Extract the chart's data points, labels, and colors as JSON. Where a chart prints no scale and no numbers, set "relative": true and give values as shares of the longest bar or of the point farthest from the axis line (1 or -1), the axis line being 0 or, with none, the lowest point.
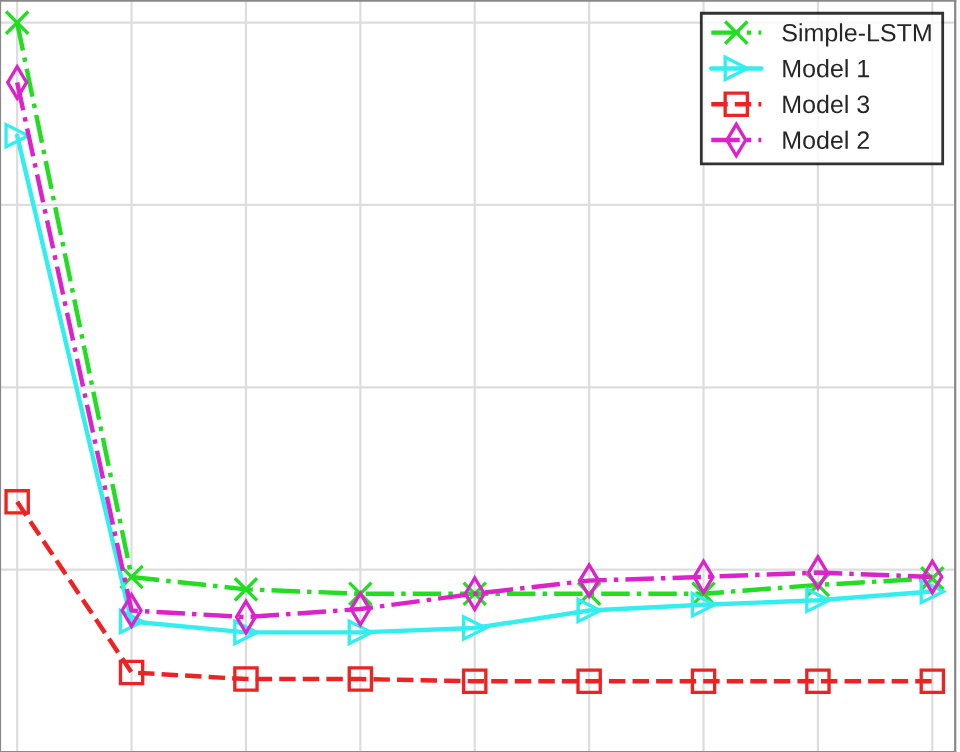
{
  "chart_data": {
    "type": "line",
    "relative": true,
    "categories": [
      null,
      null,
      null,
      null,
      null,
      null,
      null,
      null,
      null
    ],
    "grid": true,
    "legend": "top right",
    "series": [
      {
        "name": "Simple-LSTM",
        "color": "#22dd22",
        "marker": "cross",
        "line_style": "dashdot",
        "values": [
          1.0,
          0.24,
          0.223,
          0.217,
          0.217,
          0.217,
          0.217,
          0.229,
          0.238
        ]
      },
      {
        "name": "Model 1",
        "color": "#33eeee",
        "marker": "triangle",
        "line_style": "solid",
        "values": [
          0.845,
          0.179,
          0.164,
          0.164,
          0.17,
          0.194,
          0.202,
          0.208,
          0.22
        ]
      },
      {
        "name": "Model 3",
        "color": "#ee2222",
        "marker": "square",
        "line_style": "dashed",
        "values": [
          0.343,
          0.109,
          0.1,
          0.1,
          0.097,
          0.097,
          0.097,
          0.097,
          0.097
        ]
      },
      {
        "name": "Model 2",
        "color": "#dd22cc",
        "marker": "diamond",
        "line_style": "dashdot",
        "values": [
          0.918,
          0.194,
          0.185,
          0.196,
          0.217,
          0.235,
          0.24,
          0.246,
          0.24
        ]
      }
    ]
  }
}
